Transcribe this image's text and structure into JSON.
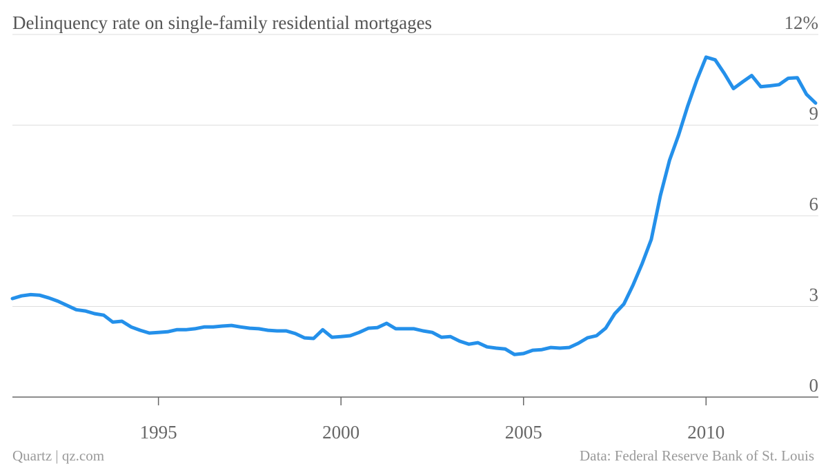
{
  "chart_data": {
    "type": "line",
    "title": "Delinquency rate on single-family residential mortgages",
    "source": "Data: Federal Reserve Bank of St. Louis",
    "credit": "Quartz | qz.com",
    "xlim": [
      1991,
      2013
    ],
    "xticks": [
      1995,
      2000,
      2005,
      2010
    ],
    "ylim": [
      0,
      12
    ],
    "yticks": [
      0,
      3,
      6,
      9,
      {
        "value": 12,
        "label": "12%"
      }
    ],
    "grid": true,
    "x": [
      1991,
      1991.25,
      1991.5,
      1991.75,
      1992,
      1992.25,
      1992.5,
      1992.75,
      1993,
      1993.25,
      1993.5,
      1993.75,
      1994,
      1994.25,
      1994.5,
      1994.75,
      1995,
      1995.25,
      1995.5,
      1995.75,
      1996,
      1996.25,
      1996.5,
      1996.75,
      1997,
      1997.25,
      1997.5,
      1997.75,
      1998,
      1998.25,
      1998.5,
      1998.75,
      1999,
      1999.25,
      1999.5,
      1999.75,
      2000,
      2000.25,
      2000.5,
      2000.75,
      2001,
      2001.25,
      2001.5,
      2001.75,
      2002,
      2002.25,
      2002.5,
      2002.75,
      2003,
      2003.25,
      2003.5,
      2003.75,
      2004,
      2004.25,
      2004.5,
      2004.75,
      2005,
      2005.25,
      2005.5,
      2005.75,
      2006,
      2006.25,
      2006.5,
      2006.75,
      2007,
      2007.25,
      2007.5,
      2007.75,
      2008,
      2008.25,
      2008.5,
      2008.75,
      2009,
      2009.25,
      2009.5,
      2009.75,
      2010,
      2010.25,
      2010.5,
      2010.75,
      2011,
      2011.25,
      2011.5,
      2011.75,
      2012,
      2012.25,
      2012.5,
      2012.75,
      2013
    ],
    "series": [
      {
        "color": "#2490ea",
        "values": [
          3.26,
          3.35,
          3.39,
          3.37,
          3.28,
          3.17,
          3.03,
          2.89,
          2.85,
          2.76,
          2.71,
          2.48,
          2.51,
          2.32,
          2.21,
          2.12,
          2.14,
          2.16,
          2.23,
          2.23,
          2.26,
          2.32,
          2.32,
          2.35,
          2.37,
          2.32,
          2.28,
          2.26,
          2.21,
          2.19,
          2.19,
          2.1,
          1.96,
          1.94,
          2.23,
          1.98,
          2.0,
          2.03,
          2.14,
          2.28,
          2.3,
          2.44,
          2.26,
          2.26,
          2.26,
          2.19,
          2.14,
          1.98,
          2.0,
          1.85,
          1.75,
          1.8,
          1.66,
          1.62,
          1.59,
          1.41,
          1.44,
          1.55,
          1.57,
          1.64,
          1.62,
          1.64,
          1.78,
          1.96,
          2.03,
          2.28,
          2.76,
          3.08,
          3.71,
          4.42,
          5.22,
          6.67,
          7.84,
          8.68,
          9.64,
          10.5,
          11.25,
          11.16,
          10.71,
          10.21,
          10.43,
          10.64,
          10.27,
          10.3,
          10.34,
          10.55,
          10.57,
          10.02,
          9.73
        ]
      }
    ]
  }
}
